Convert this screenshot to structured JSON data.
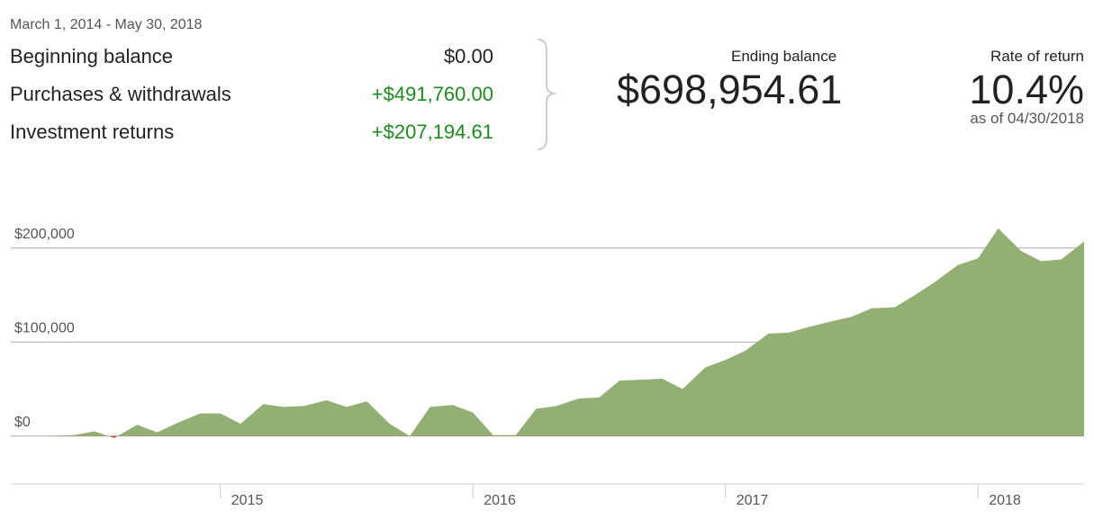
{
  "summary": {
    "date_range": "March 1, 2014 - May 30, 2018",
    "rows": [
      {
        "label": "Beginning balance",
        "value": "$0.00"
      },
      {
        "label": "Purchases & withdrawals",
        "value": "+$491,760.00"
      },
      {
        "label": "Investment returns",
        "value": "+$207,194.61"
      }
    ],
    "ending_balance_label": "Ending balance",
    "ending_balance": "$698,954.61",
    "rate_of_return_label": "Rate of return",
    "rate_of_return": "10.4%",
    "rate_of_return_note": "as of 04/30/2018"
  },
  "chart_data": {
    "type": "area",
    "x": [
      2014.17,
      2014.25,
      2014.33,
      2014.42,
      2014.5,
      2014.58,
      2014.67,
      2014.75,
      2014.83,
      2014.92,
      2015.0,
      2015.08,
      2015.17,
      2015.25,
      2015.33,
      2015.42,
      2015.5,
      2015.58,
      2015.67,
      2015.75,
      2015.83,
      2015.92,
      2016.0,
      2016.08,
      2016.17,
      2016.25,
      2016.33,
      2016.42,
      2016.5,
      2016.58,
      2016.67,
      2016.75,
      2016.83,
      2016.92,
      2017.0,
      2017.08,
      2017.17,
      2017.25,
      2017.33,
      2017.42,
      2017.5,
      2017.58,
      2017.67,
      2017.75,
      2017.83,
      2017.92,
      2018.0,
      2018.08,
      2018.17,
      2018.25,
      2018.33,
      2018.42
    ],
    "values": [
      0,
      0,
      0,
      1000,
      5000,
      -2000,
      12000,
      4000,
      14000,
      24000,
      24000,
      13000,
      34000,
      31000,
      32000,
      38000,
      31000,
      37000,
      13000,
      0,
      31000,
      33000,
      25000,
      1000,
      1000,
      29000,
      32000,
      40000,
      41000,
      59000,
      60000,
      61000,
      50000,
      73000,
      81000,
      91000,
      109000,
      110000,
      116000,
      122000,
      127000,
      136000,
      137000,
      150000,
      164000,
      182000,
      189000,
      221000,
      197000,
      186000,
      188000,
      207000
    ],
    "color": "#93b074",
    "negative_color": "#e03030",
    "xlim": [
      2014.17,
      2018.42
    ],
    "xticks": [
      2015,
      2016,
      2017,
      2018
    ],
    "ylim": [
      -50000,
      240000
    ],
    "yticks": [
      {
        "value": 0,
        "label": "$0"
      },
      {
        "value": 100000,
        "label": "$100,000"
      },
      {
        "value": 200000,
        "label": "$200,000"
      }
    ],
    "grid": true
  }
}
